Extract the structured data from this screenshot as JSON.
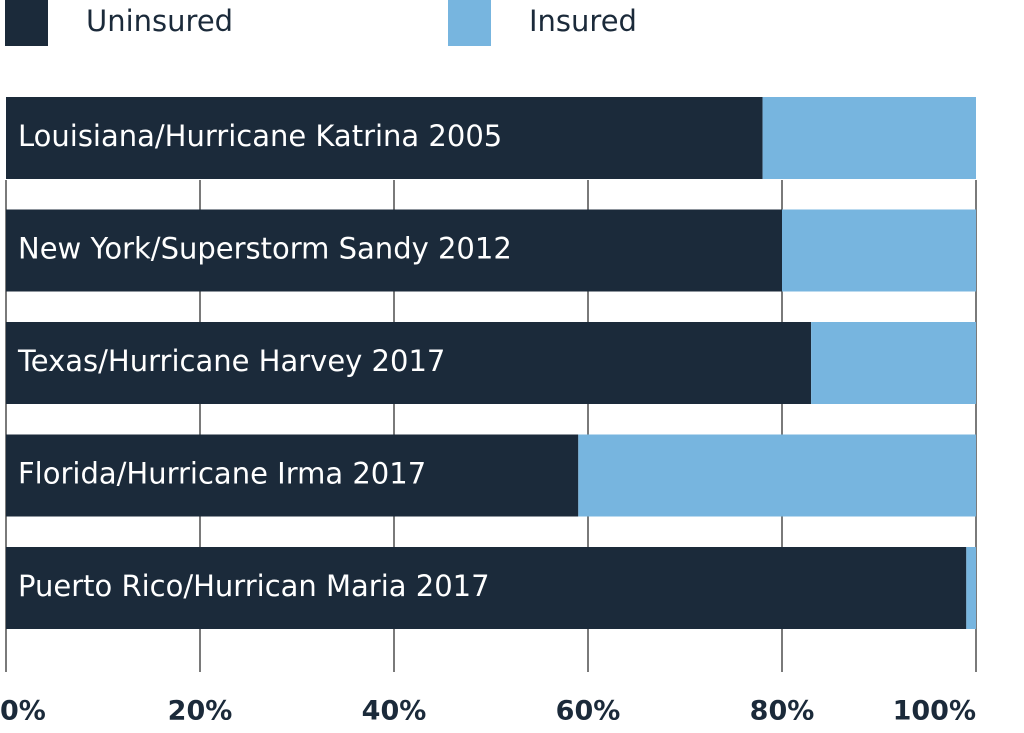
{
  "chart_data": {
    "type": "stacked_hbar",
    "categories": [
      "Louisiana/Hurricane Katrina 2005",
      "New York/Superstorm Sandy 2012",
      "Texas/Hurricane Harvey 2017",
      "Florida/Hurricane Irma 2017",
      "Puerto Rico/Hurrican Maria 2017"
    ],
    "series": [
      {
        "name": "Uninsured",
        "color": "#1b2a3a",
        "values": [
          78,
          80,
          83,
          59,
          99
        ]
      },
      {
        "name": "Insured",
        "color": "#77b5df",
        "values": [
          22,
          20,
          17,
          41,
          1
        ]
      }
    ],
    "xlim": [
      0,
      100
    ],
    "xticks": [
      {
        "value": 0,
        "label": "0%"
      },
      {
        "value": 20,
        "label": "20%"
      },
      {
        "value": 40,
        "label": "40%"
      },
      {
        "value": 60,
        "label": "60%"
      },
      {
        "value": 80,
        "label": "80%"
      },
      {
        "value": 100,
        "label": "100%"
      }
    ],
    "grid": true
  }
}
